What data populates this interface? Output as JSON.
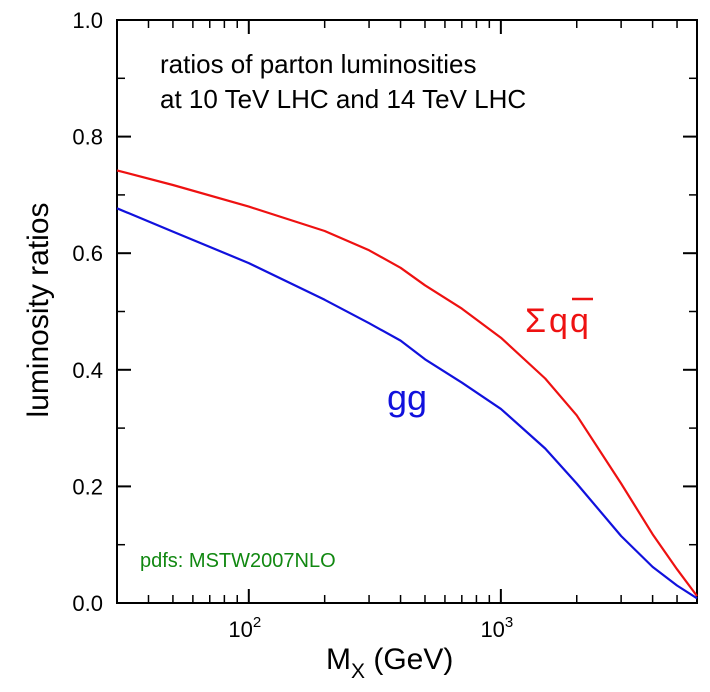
{
  "chart_data": {
    "type": "line",
    "xlabel": {
      "main": "M",
      "sub": "X",
      "unit": " (GeV)"
    },
    "ylabel": "luminosity ratios",
    "x_scale": "log",
    "xlim": [
      30,
      6000
    ],
    "ylim": [
      0.0,
      1.0
    ],
    "y_ticks": [
      {
        "value": 0.0,
        "label": "0.0"
      },
      {
        "value": 0.2,
        "label": "0.2"
      },
      {
        "value": 0.4,
        "label": "0.4"
      },
      {
        "value": 0.6,
        "label": "0.6"
      },
      {
        "value": 0.8,
        "label": "0.8"
      },
      {
        "value": 1.0,
        "label": "1.0"
      }
    ],
    "x_major_ticks": [
      {
        "value": 100,
        "base": "10",
        "exp": "2"
      },
      {
        "value": 1000,
        "base": "10",
        "exp": "3"
      }
    ],
    "annotations": {
      "title_line1": "ratios of parton luminosities",
      "title_line2": "at 10 TeV LHC and 14 TeV LHC",
      "pdfs": "pdfs: MSTW2007NLO"
    },
    "series": [
      {
        "name": "Σqq",
        "label_sigma": "Σ",
        "label_q1": "q",
        "label_q2": "q",
        "color": "#ee1111",
        "x": [
          30,
          50,
          100,
          200,
          300,
          400,
          500,
          700,
          1000,
          1500,
          2000,
          3000,
          4000,
          5000,
          6000
        ],
        "y": [
          0.742,
          0.717,
          0.68,
          0.638,
          0.605,
          0.575,
          0.545,
          0.505,
          0.455,
          0.385,
          0.322,
          0.205,
          0.118,
          0.058,
          0.012
        ]
      },
      {
        "name": "gg",
        "color": "#1111dd",
        "x": [
          30,
          50,
          100,
          200,
          300,
          400,
          500,
          700,
          1000,
          1500,
          2000,
          3000,
          4000,
          5000,
          6000
        ],
        "y": [
          0.677,
          0.637,
          0.583,
          0.52,
          0.48,
          0.45,
          0.418,
          0.378,
          0.333,
          0.265,
          0.205,
          0.115,
          0.062,
          0.03,
          0.008
        ]
      }
    ],
    "colors": {
      "axis": "#000000",
      "pdfs_text": "#118811"
    }
  }
}
